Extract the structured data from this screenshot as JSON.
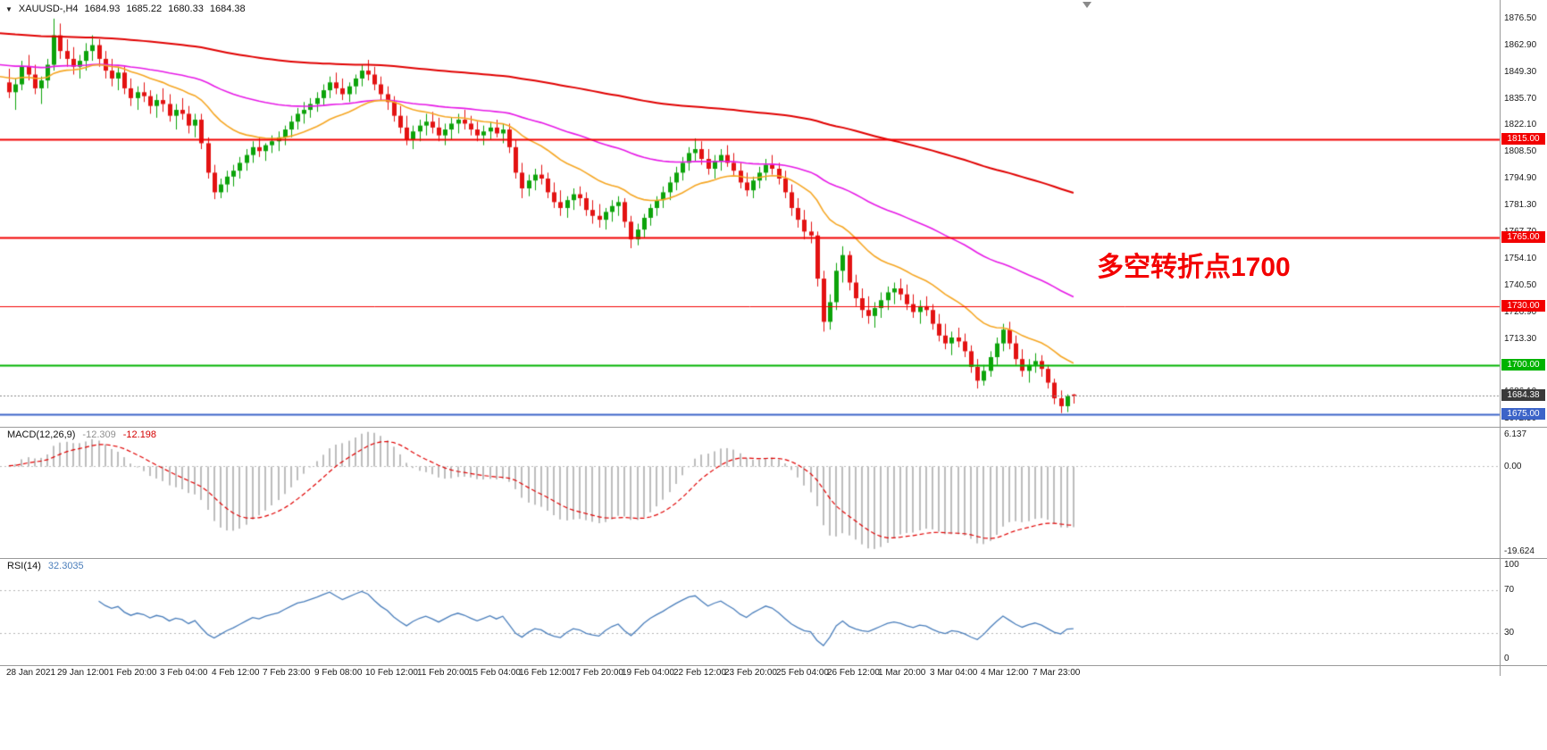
{
  "title_bar": {
    "symbol": "XAUUSD-,H4",
    "open": "1684.93",
    "high": "1685.22",
    "low": "1680.33",
    "close": "1684.38"
  },
  "annotation": {
    "text": "多空转折点1700",
    "color": "#f30000"
  },
  "colors": {
    "background": "#ffffff",
    "candle_up": "#0ca30a",
    "candle_down": "#e31212",
    "axis_text": "#1a1a1a",
    "divider": "#9a9a9a"
  },
  "chart_data": [
    {
      "type": "candlestick",
      "symbol": "XAUUSD-",
      "timeframe": "H4",
      "y_range": [
        1668.5,
        1886.0
      ],
      "price_ticks": [
        1876.5,
        1862.9,
        1849.3,
        1835.7,
        1822.1,
        1808.5,
        1794.9,
        1781.3,
        1767.7,
        1754.1,
        1740.5,
        1726.9,
        1713.3,
        1699.7,
        1686.1,
        1672.5
      ],
      "hlines": [
        {
          "price": 1815.0,
          "label": "1815.00",
          "color": "#f20000",
          "width": 2
        },
        {
          "price": 1765.0,
          "label": "1765.00",
          "color": "#f20000",
          "width": 2
        },
        {
          "price": 1730.0,
          "label": "1730.00",
          "color": "#f20000",
          "width": 1
        },
        {
          "price": 1700.0,
          "label": "1700.00",
          "color": "#00b300",
          "width": 2
        },
        {
          "price": 1675.0,
          "label": "1675.00",
          "color": "#3c64c8",
          "width": 2
        }
      ],
      "bid_line": {
        "price": 1684.38,
        "label": "1684.38",
        "color": "#3a3a3a"
      },
      "moving_averages": [
        {
          "name": "ma-slow",
          "color": "#e00000",
          "period": 200,
          "seed": 1869,
          "width": 2
        },
        {
          "name": "ma-mid",
          "color": "#e619e6",
          "period": 65,
          "seed": 1853,
          "width": 1.6
        },
        {
          "name": "ma-fast",
          "color": "#f5a623",
          "period": 21,
          "seed": 1847,
          "width": 1.6
        }
      ],
      "time_labels": [
        "28 Jan 2021",
        "29 Jan 12:00",
        "1 Feb 20:00",
        "3 Feb 04:00",
        "4 Feb 12:00",
        "7 Feb 23:00",
        "9 Feb 08:00",
        "10 Feb 12:00",
        "11 Feb 20:00",
        "15 Feb 04:00",
        "16 Feb 12:00",
        "17 Feb 20:00",
        "19 Feb 04:00",
        "22 Feb 12:00",
        "23 Feb 20:00",
        "25 Feb 04:00",
        "26 Feb 12:00",
        "1 Mar 20:00",
        "3 Mar 04:00",
        "4 Mar 12:00",
        "7 Mar 23:00"
      ],
      "ohlc": [
        [
          1844,
          1851,
          1836,
          1839
        ],
        [
          1839,
          1846,
          1830,
          1843
        ],
        [
          1843,
          1855,
          1840,
          1852
        ],
        [
          1852,
          1858,
          1845,
          1848
        ],
        [
          1848,
          1853,
          1838,
          1841
        ],
        [
          1841,
          1847,
          1833,
          1845
        ],
        [
          1845,
          1856,
          1841,
          1853
        ],
        [
          1853,
          1876.5,
          1850,
          1868
        ],
        [
          1868,
          1874,
          1856,
          1860
        ],
        [
          1860,
          1866,
          1852,
          1856
        ],
        [
          1856,
          1862,
          1848,
          1852
        ],
        [
          1852,
          1858,
          1846,
          1855
        ],
        [
          1855,
          1864,
          1850,
          1860
        ],
        [
          1860,
          1868,
          1855,
          1863
        ],
        [
          1863,
          1866,
          1852,
          1856
        ],
        [
          1856,
          1860,
          1846,
          1850
        ],
        [
          1850,
          1856,
          1842,
          1846
        ],
        [
          1846,
          1852,
          1840,
          1849
        ],
        [
          1849,
          1852,
          1838,
          1841
        ],
        [
          1841,
          1846,
          1832,
          1836
        ],
        [
          1836,
          1842,
          1830,
          1839
        ],
        [
          1839,
          1844,
          1834,
          1837
        ],
        [
          1837,
          1840,
          1828,
          1832
        ],
        [
          1832,
          1838,
          1826,
          1835
        ],
        [
          1835,
          1841,
          1829,
          1833
        ],
        [
          1833,
          1838,
          1824,
          1827
        ],
        [
          1827,
          1833,
          1820,
          1830
        ],
        [
          1830,
          1836,
          1825,
          1828
        ],
        [
          1828,
          1832,
          1818,
          1822
        ],
        [
          1822,
          1828,
          1816,
          1825
        ],
        [
          1825,
          1828,
          1810,
          1813
        ],
        [
          1813,
          1816,
          1795,
          1798
        ],
        [
          1798,
          1802,
          1784.5,
          1788
        ],
        [
          1788,
          1795,
          1785,
          1792
        ],
        [
          1792,
          1799,
          1788,
          1796
        ],
        [
          1796,
          1802,
          1791,
          1799
        ],
        [
          1799,
          1806,
          1795,
          1803
        ],
        [
          1803,
          1810,
          1799,
          1807
        ],
        [
          1807,
          1814,
          1803,
          1811
        ],
        [
          1811,
          1816,
          1806,
          1809
        ],
        [
          1809,
          1813,
          1804,
          1812
        ],
        [
          1812,
          1817,
          1808,
          1814
        ],
        [
          1814,
          1819,
          1809,
          1816
        ],
        [
          1816,
          1822,
          1812,
          1820
        ],
        [
          1820,
          1827,
          1816,
          1824
        ],
        [
          1824,
          1831,
          1820,
          1828
        ],
        [
          1828,
          1834,
          1823,
          1830
        ],
        [
          1830,
          1836,
          1826,
          1833
        ],
        [
          1833,
          1839,
          1829,
          1836
        ],
        [
          1836,
          1843,
          1832,
          1840
        ],
        [
          1840,
          1847,
          1836,
          1844
        ],
        [
          1844,
          1849,
          1838,
          1841
        ],
        [
          1841,
          1846,
          1835,
          1838
        ],
        [
          1838,
          1844,
          1834,
          1842
        ],
        [
          1842,
          1848,
          1838,
          1846
        ],
        [
          1846,
          1853,
          1842,
          1850
        ],
        [
          1850,
          1855.5,
          1845,
          1848
        ],
        [
          1848,
          1852,
          1840,
          1843
        ],
        [
          1843,
          1847,
          1835,
          1838
        ],
        [
          1838,
          1842,
          1830,
          1834
        ],
        [
          1834,
          1837,
          1824,
          1827
        ],
        [
          1827,
          1832,
          1818,
          1821
        ],
        [
          1821,
          1827,
          1812,
          1815
        ],
        [
          1815,
          1822,
          1810,
          1819
        ],
        [
          1819,
          1825,
          1814,
          1822
        ],
        [
          1822,
          1828,
          1817,
          1824
        ],
        [
          1824,
          1829,
          1818,
          1821
        ],
        [
          1821,
          1826,
          1814,
          1817
        ],
        [
          1817,
          1823,
          1812,
          1820
        ],
        [
          1820,
          1826,
          1815,
          1823
        ],
        [
          1823,
          1828,
          1818,
          1825
        ],
        [
          1825,
          1830,
          1820,
          1823
        ],
        [
          1823,
          1827,
          1817,
          1820
        ],
        [
          1820,
          1824,
          1814,
          1817
        ],
        [
          1817,
          1822,
          1812,
          1819
        ],
        [
          1819,
          1824,
          1815,
          1821
        ],
        [
          1821,
          1825,
          1816,
          1818
        ],
        [
          1818,
          1823,
          1813,
          1820
        ],
        [
          1820,
          1823,
          1808,
          1811
        ],
        [
          1811,
          1815,
          1795,
          1798
        ],
        [
          1798,
          1803,
          1785,
          1790
        ],
        [
          1790,
          1797,
          1786,
          1794
        ],
        [
          1794,
          1800,
          1789,
          1797
        ],
        [
          1797,
          1802,
          1792,
          1795
        ],
        [
          1795,
          1798,
          1785,
          1788
        ],
        [
          1788,
          1793,
          1780,
          1783
        ],
        [
          1783,
          1789,
          1776,
          1780
        ],
        [
          1780,
          1786,
          1775,
          1784
        ],
        [
          1784,
          1790,
          1779,
          1787
        ],
        [
          1787,
          1791,
          1781,
          1785
        ],
        [
          1785,
          1788,
          1776,
          1779
        ],
        [
          1779,
          1784,
          1772,
          1776
        ],
        [
          1776,
          1782,
          1770,
          1774
        ],
        [
          1774,
          1780,
          1769,
          1778
        ],
        [
          1778,
          1784,
          1773,
          1781
        ],
        [
          1781,
          1786,
          1776,
          1783
        ],
        [
          1783,
          1785,
          1770,
          1773
        ],
        [
          1773,
          1776,
          1759.5,
          1764
        ],
        [
          1764,
          1772,
          1761,
          1769
        ],
        [
          1769,
          1777,
          1765,
          1775
        ],
        [
          1775,
          1782,
          1771,
          1780
        ],
        [
          1780,
          1786,
          1776,
          1784
        ],
        [
          1784,
          1791,
          1780,
          1788
        ],
        [
          1788,
          1796,
          1784,
          1793
        ],
        [
          1793,
          1801,
          1789,
          1798
        ],
        [
          1798,
          1806,
          1794,
          1803
        ],
        [
          1803,
          1811,
          1799,
          1808
        ],
        [
          1808,
          1815.5,
          1804,
          1810
        ],
        [
          1810,
          1814,
          1802,
          1805
        ],
        [
          1805,
          1810,
          1797,
          1800
        ],
        [
          1800,
          1807,
          1795,
          1804
        ],
        [
          1804,
          1810,
          1799,
          1807
        ],
        [
          1807,
          1812,
          1801,
          1803
        ],
        [
          1803,
          1808,
          1796,
          1799
        ],
        [
          1799,
          1803,
          1790,
          1793
        ],
        [
          1793,
          1798,
          1786,
          1789
        ],
        [
          1789,
          1796,
          1785,
          1794
        ],
        [
          1794,
          1801,
          1790,
          1798
        ],
        [
          1798,
          1805,
          1794,
          1802
        ],
        [
          1802,
          1807,
          1797,
          1800
        ],
        [
          1800,
          1803,
          1792,
          1795
        ],
        [
          1795,
          1799,
          1785,
          1788
        ],
        [
          1788,
          1792,
          1776,
          1780
        ],
        [
          1780,
          1785,
          1770,
          1774
        ],
        [
          1774,
          1779,
          1764,
          1768
        ],
        [
          1768,
          1773,
          1762,
          1766
        ],
        [
          1766,
          1768,
          1740,
          1744
        ],
        [
          1744,
          1748,
          1717,
          1722
        ],
        [
          1722,
          1736,
          1718,
          1732
        ],
        [
          1732,
          1752,
          1728,
          1748
        ],
        [
          1748,
          1760.5,
          1742,
          1756
        ],
        [
          1756,
          1758,
          1738,
          1742
        ],
        [
          1742,
          1746,
          1730,
          1734
        ],
        [
          1734,
          1739,
          1724,
          1728
        ],
        [
          1728,
          1735,
          1721,
          1725
        ],
        [
          1725,
          1732,
          1719,
          1729
        ],
        [
          1729,
          1737,
          1724,
          1733
        ],
        [
          1733,
          1740,
          1728,
          1737
        ],
        [
          1737,
          1742,
          1731,
          1739
        ],
        [
          1739,
          1744,
          1733,
          1736
        ],
        [
          1736,
          1741,
          1728,
          1731
        ],
        [
          1731,
          1736,
          1724,
          1727
        ],
        [
          1727,
          1733,
          1721,
          1730
        ],
        [
          1730,
          1735,
          1725,
          1728
        ],
        [
          1728,
          1731,
          1718,
          1721
        ],
        [
          1721,
          1726,
          1712,
          1715
        ],
        [
          1715,
          1721,
          1708,
          1711
        ],
        [
          1711,
          1717,
          1705,
          1714
        ],
        [
          1714,
          1719,
          1709,
          1712
        ],
        [
          1712,
          1716,
          1704,
          1707
        ],
        [
          1707,
          1710,
          1696,
          1699
        ],
        [
          1699,
          1703,
          1688,
          1692
        ],
        [
          1692,
          1700,
          1689.5,
          1697
        ],
        [
          1697,
          1707,
          1694,
          1704
        ],
        [
          1704,
          1714,
          1700,
          1711
        ],
        [
          1711,
          1721,
          1707,
          1718
        ],
        [
          1718,
          1722,
          1708,
          1711
        ],
        [
          1711,
          1715,
          1700,
          1703
        ],
        [
          1703,
          1708,
          1694,
          1697
        ],
        [
          1697,
          1703,
          1691,
          1700
        ],
        [
          1700,
          1706,
          1696,
          1702
        ],
        [
          1702,
          1705,
          1694,
          1698
        ],
        [
          1698,
          1700,
          1688,
          1691
        ],
        [
          1691,
          1693,
          1680,
          1683
        ],
        [
          1683,
          1687,
          1675.5,
          1679
        ],
        [
          1679,
          1685,
          1676,
          1684
        ],
        [
          1684.93,
          1685.22,
          1680.33,
          1684.38
        ]
      ]
    },
    {
      "type": "bar",
      "label": "MACD(12,26,9)",
      "params": [
        12,
        26,
        9
      ],
      "value_main": "-12.309",
      "value_signal": "-12.198",
      "axis_labels": [
        "6.137",
        "0.00",
        "-19.624"
      ],
      "histogram_color": "#bdbdbd",
      "signal_color": "#e00000"
    },
    {
      "type": "line",
      "label": "RSI(14)",
      "period": 14,
      "value": "32.3035",
      "levels": [
        70,
        30
      ],
      "axis_labels": [
        "100",
        "70",
        "30",
        "0"
      ],
      "line_color": "#4a7ebb"
    }
  ]
}
